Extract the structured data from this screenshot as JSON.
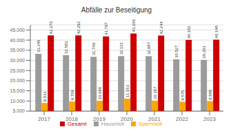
{
  "chart_data": {
    "type": "bar",
    "title": "Abfälle zur Beseitigung",
    "categories": [
      "2017",
      "2018",
      "2019",
      "2020",
      "2021",
      "2022",
      "2023"
    ],
    "series": [
      {
        "name": "Hausmüll",
        "color": "#9B9B9B",
        "values": [
          33245,
          32583,
          31749,
          32116,
          32087,
          30527,
          30263
        ],
        "value_labels": [
          "33.245",
          "32.583",
          "31.749",
          "32.116",
          "32.087",
          "30.527",
          "30.263"
        ]
      },
      {
        "name": "Sperrmüll",
        "color": "#FFA500",
        "values": [
          9031,
          9709,
          10048,
          11153,
          10157,
          9575,
          9885
        ],
        "value_labels": [
          "9.031",
          "9.709",
          "10.048",
          "11.153",
          "10.157",
          "9.575",
          "9.885"
        ]
      },
      {
        "name": "Gesamt",
        "color": "#CC0000",
        "values": [
          42276,
          42292,
          41797,
          43269,
          42244,
          40102,
          40148
        ],
        "value_labels": [
          "42.276",
          "42.292",
          "41.797",
          "43.269",
          "42.244",
          "40.102",
          "40.148"
        ]
      }
    ],
    "ylim": [
      5000,
      47500
    ],
    "yticks": [
      {
        "value": 5000,
        "label": "5.000"
      },
      {
        "value": 10000,
        "label": "10.000"
      },
      {
        "value": 15000,
        "label": "15.000"
      },
      {
        "value": 20000,
        "label": "20.000"
      },
      {
        "value": 25000,
        "label": "25.000"
      },
      {
        "value": 30000,
        "label": "30.000"
      },
      {
        "value": 35000,
        "label": "35.000"
      },
      {
        "value": 40000,
        "label": "40.000"
      },
      {
        "value": 45000,
        "label": "45.000"
      }
    ],
    "grid": true,
    "data_labels": true,
    "legend": "bottom"
  }
}
